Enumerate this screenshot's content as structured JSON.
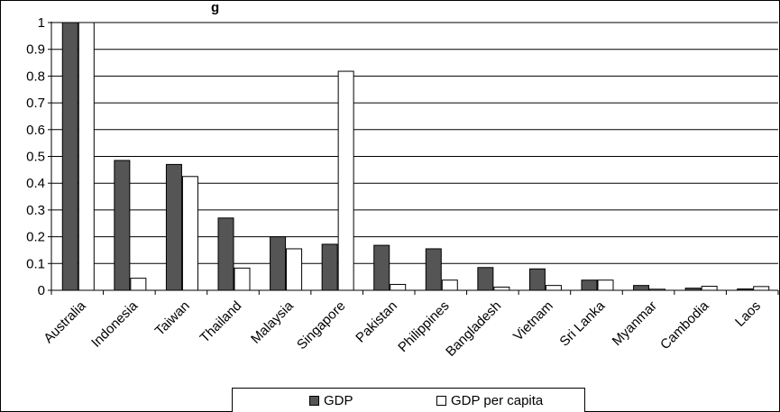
{
  "chart_data": {
    "type": "bar",
    "title": "g",
    "categories": [
      "Australia",
      "Indonesia",
      "Taiwan",
      "Thailand",
      "Malaysia",
      "Singapore",
      "Pakistan",
      "Philippines",
      "Bangladesh",
      "Vietnam",
      "Sri Lanka",
      "Myanmar",
      "Cambodia",
      "Laos"
    ],
    "series": [
      {
        "name": "GDP",
        "color": "#555555",
        "values": [
          1.0,
          0.485,
          0.47,
          0.27,
          0.2,
          0.172,
          0.168,
          0.155,
          0.085,
          0.08,
          0.038,
          0.018,
          0.008,
          0.005
        ]
      },
      {
        "name": "GDP per capita",
        "color": "#ffffff",
        "values": [
          1.0,
          0.045,
          0.425,
          0.083,
          0.155,
          0.818,
          0.022,
          0.038,
          0.012,
          0.018,
          0.038,
          0.004,
          0.015,
          0.014
        ]
      }
    ],
    "yticks": [
      "0",
      "0.1",
      "0.2",
      "0.3",
      "0.4",
      "0.5",
      "0.6",
      "0.7",
      "0.8",
      "0.9",
      "1"
    ],
    "ylim": [
      0,
      1
    ],
    "grid": true,
    "legend_position": "bottom"
  }
}
